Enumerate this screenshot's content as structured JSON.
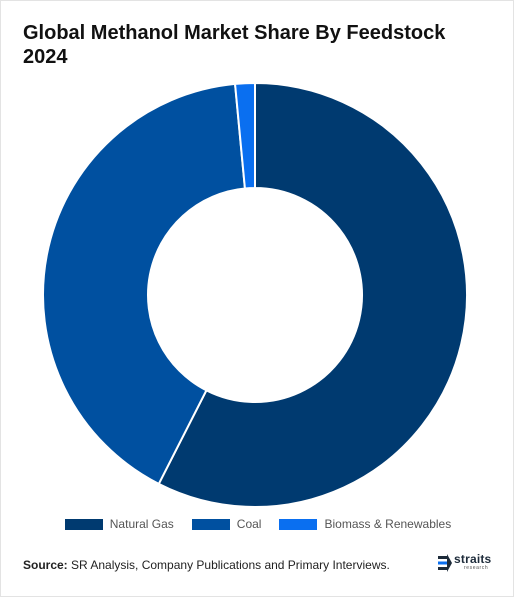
{
  "chart_data": {
    "type": "pie",
    "title": "Global Methanol Market Share By Feedstock 2024",
    "categories": [
      "Natural Gas",
      "Coal",
      "Biomass & Renewables"
    ],
    "values": [
      57.5,
      41.0,
      1.5
    ],
    "colors": [
      "#003a70",
      "#0050a0",
      "#0a6ff0"
    ],
    "donut": true,
    "legend_position": "bottom"
  },
  "source": {
    "label": "Source:",
    "text": " SR Analysis, Company Publications and Primary Interviews."
  },
  "logo": {
    "word": "straits",
    "sub": "research"
  }
}
